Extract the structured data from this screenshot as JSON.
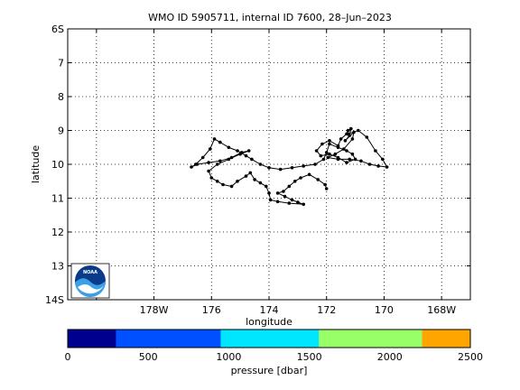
{
  "chart_data": {
    "type": "line",
    "title": "WMO ID 5905711, internal ID 7600, 28–Jun–2023",
    "xlabel": "longitude",
    "ylabel": "latitude",
    "grid": true,
    "x_axis": {
      "range": [
        -181,
        -167
      ],
      "ticks": [
        -180,
        -178,
        -176,
        -174,
        -172,
        -170,
        -168,
        -166
      ],
      "tick_labels": [
        "",
        "178W",
        "176",
        "174",
        "172",
        "170",
        "168W",
        ""
      ]
    },
    "y_axis": {
      "range": [
        6,
        14
      ],
      "reversed": true,
      "ticks": [
        6,
        7,
        8,
        9,
        10,
        11,
        12,
        13,
        14
      ],
      "tick_labels": [
        "6S",
        "7",
        "8",
        "9",
        "10",
        "11",
        "12",
        "13",
        "14S"
      ]
    },
    "series": [
      {
        "marker": "dot",
        "color": "#000000",
        "points": [
          [
            -172.0,
            10.72
          ],
          [
            -172.05,
            10.6
          ],
          [
            -172.3,
            10.45
          ],
          [
            -172.6,
            10.3
          ],
          [
            -172.9,
            10.4
          ],
          [
            -173.1,
            10.5
          ],
          [
            -173.3,
            10.65
          ],
          [
            -173.5,
            10.8
          ],
          [
            -173.7,
            10.85
          ],
          [
            -173.45,
            10.95
          ],
          [
            -173.2,
            11.05
          ],
          [
            -173.0,
            11.12
          ],
          [
            -172.8,
            11.18
          ],
          [
            -173.3,
            11.15
          ],
          [
            -173.7,
            11.1
          ],
          [
            -173.95,
            11.05
          ],
          [
            -174.0,
            10.85
          ],
          [
            -174.1,
            10.65
          ],
          [
            -174.3,
            10.55
          ],
          [
            -174.5,
            10.45
          ],
          [
            -174.65,
            10.25
          ],
          [
            -174.8,
            10.35
          ],
          [
            -175.1,
            10.5
          ],
          [
            -175.3,
            10.65
          ],
          [
            -175.6,
            10.6
          ],
          [
            -175.8,
            10.5
          ],
          [
            -176.0,
            10.4
          ],
          [
            -176.1,
            10.2
          ],
          [
            -175.8,
            10.0
          ],
          [
            -175.4,
            9.85
          ],
          [
            -175.0,
            9.7
          ],
          [
            -174.7,
            9.6
          ],
          [
            -174.95,
            9.65
          ],
          [
            -175.3,
            9.8
          ],
          [
            -175.7,
            9.9
          ],
          [
            -176.1,
            9.95
          ],
          [
            -176.5,
            10.0
          ],
          [
            -176.7,
            10.08
          ],
          [
            -176.55,
            10.0
          ],
          [
            -176.3,
            9.8
          ],
          [
            -176.05,
            9.55
          ],
          [
            -175.9,
            9.25
          ],
          [
            -175.7,
            9.35
          ],
          [
            -175.4,
            9.5
          ],
          [
            -175.1,
            9.6
          ],
          [
            -174.8,
            9.75
          ],
          [
            -174.6,
            9.85
          ],
          [
            -174.3,
            10.0
          ],
          [
            -174.0,
            10.1
          ],
          [
            -173.6,
            10.15
          ],
          [
            -173.2,
            10.1
          ],
          [
            -172.8,
            10.05
          ],
          [
            -172.4,
            10.0
          ],
          [
            -172.1,
            9.85
          ],
          [
            -172.0,
            9.65
          ],
          [
            -171.9,
            9.4
          ],
          [
            -171.6,
            9.5
          ],
          [
            -171.3,
            9.6
          ],
          [
            -171.1,
            9.7
          ],
          [
            -171.0,
            9.85
          ],
          [
            -171.3,
            9.95
          ],
          [
            -171.6,
            9.8
          ],
          [
            -171.9,
            9.7
          ],
          [
            -172.2,
            9.75
          ],
          [
            -172.35,
            9.6
          ],
          [
            -172.15,
            9.4
          ],
          [
            -171.9,
            9.3
          ],
          [
            -171.6,
            9.45
          ],
          [
            -171.5,
            9.25
          ],
          [
            -171.3,
            9.1
          ],
          [
            -171.25,
            9.0
          ],
          [
            -171.15,
            8.95
          ],
          [
            -171.2,
            9.15
          ],
          [
            -171.35,
            9.3
          ],
          [
            -171.05,
            9.05
          ],
          [
            -171.1,
            9.25
          ],
          [
            -171.4,
            9.55
          ],
          [
            -171.7,
            9.7
          ],
          [
            -171.95,
            9.8
          ],
          [
            -171.6,
            9.85
          ],
          [
            -171.2,
            9.85
          ],
          [
            -170.8,
            9.9
          ],
          [
            -170.5,
            10.0
          ],
          [
            -170.2,
            10.05
          ],
          [
            -169.9,
            10.08
          ],
          [
            -170.05,
            9.85
          ],
          [
            -170.3,
            9.6
          ],
          [
            -170.6,
            9.2
          ],
          [
            -170.9,
            9.0
          ],
          [
            -171.25,
            9.1
          ]
        ]
      }
    ],
    "colorbar": {
      "label": "pressure [dbar]",
      "ticks": [
        0,
        500,
        1000,
        1500,
        2000,
        2500
      ],
      "range": [
        0,
        2500
      ],
      "segments": [
        {
          "from": 0,
          "to": 300,
          "color": "#00008f"
        },
        {
          "from": 300,
          "to": 950,
          "color": "#0050ff"
        },
        {
          "from": 950,
          "to": 1560,
          "color": "#00e6ff"
        },
        {
          "from": 1560,
          "to": 2200,
          "color": "#99ff66"
        },
        {
          "from": 2200,
          "to": 2500,
          "color": "#ffa500"
        }
      ]
    },
    "logo": {
      "text": "NOAA"
    }
  }
}
